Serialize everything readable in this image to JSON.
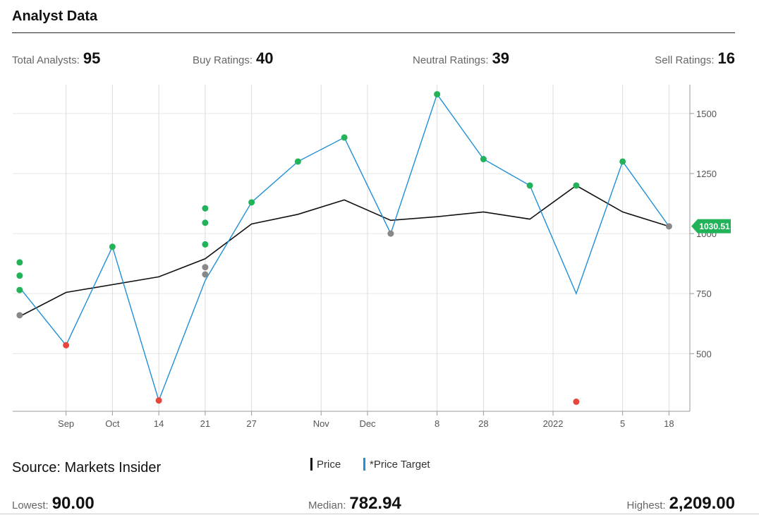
{
  "header": {
    "title": "Analyst Data"
  },
  "stats": {
    "total": {
      "label": "Total Analysts:",
      "value": "95"
    },
    "buy": {
      "label": "Buy Ratings:",
      "value": "40"
    },
    "neutral": {
      "label": "Neutral Ratings:",
      "value": "39"
    },
    "sell": {
      "label": "Sell Ratings:",
      "value": "16"
    }
  },
  "source": "Source: Markets Insider",
  "legend": {
    "price": {
      "label": "Price",
      "color": "#111111"
    },
    "target": {
      "label": "*Price Target",
      "color": "#1f8fd6"
    }
  },
  "bottom_stats": {
    "lowest": {
      "label": "Lowest:",
      "value": "90.00"
    },
    "median": {
      "label": "Median:",
      "value": "782.94"
    },
    "highest": {
      "label": "Highest:",
      "value": "2,209.00"
    }
  },
  "colors": {
    "buy": "#22b25a",
    "neutral": "#888888",
    "sell": "#e8453c",
    "grid": "#e6e6e6",
    "axis": "#999999"
  },
  "chart_data": {
    "type": "line",
    "x_ticks": [
      "Sep",
      "Oct",
      "14",
      "21",
      "27",
      "Nov",
      "Dec",
      "8",
      "28",
      "2022",
      "5",
      "18"
    ],
    "x_tick_pos": [
      1,
      2,
      3,
      4,
      5,
      6.5,
      7.5,
      9,
      10,
      11.5,
      13,
      14
    ],
    "y_ticks": [
      "500",
      "750",
      "1000",
      "1250",
      "1500"
    ],
    "ylim": [
      260,
      1620
    ],
    "xlim": [
      -0.15,
      14.45
    ],
    "current_price_label": "1030.51",
    "current_price": 1030.51,
    "series": [
      {
        "name": "Price",
        "x": [
          0,
          1,
          3,
          4,
          5,
          6,
          7,
          8,
          9,
          10,
          11,
          12,
          13,
          14
        ],
        "values": [
          655,
          755,
          820,
          895,
          1040,
          1080,
          1140,
          1055,
          1070,
          1090,
          1060,
          1200,
          1090,
          1030
        ]
      },
      {
        "name": "*Price Target",
        "x": [
          0,
          1,
          2,
          3,
          4,
          5,
          6,
          7,
          8,
          9,
          10,
          11,
          12,
          13,
          14
        ],
        "values": [
          775,
          535,
          945,
          305,
          805,
          1130,
          1300,
          1400,
          1000,
          1580,
          1310,
          1200,
          750,
          1300,
          1030
        ]
      }
    ],
    "ratings": [
      {
        "x": 0,
        "y": 880,
        "r": "buy"
      },
      {
        "x": 0,
        "y": 825,
        "r": "buy"
      },
      {
        "x": 0,
        "y": 765,
        "r": "buy"
      },
      {
        "x": 0,
        "y": 660,
        "r": "neutral"
      },
      {
        "x": 1,
        "y": 535,
        "r": "sell"
      },
      {
        "x": 2,
        "y": 945,
        "r": "buy"
      },
      {
        "x": 3,
        "y": 305,
        "r": "sell"
      },
      {
        "x": 4,
        "y": 1105,
        "r": "buy"
      },
      {
        "x": 4,
        "y": 1045,
        "r": "buy"
      },
      {
        "x": 4,
        "y": 955,
        "r": "buy"
      },
      {
        "x": 4,
        "y": 860,
        "r": "neutral"
      },
      {
        "x": 4,
        "y": 830,
        "r": "neutral"
      },
      {
        "x": 5,
        "y": 1130,
        "r": "buy"
      },
      {
        "x": 6,
        "y": 1300,
        "r": "buy"
      },
      {
        "x": 7,
        "y": 1400,
        "r": "buy"
      },
      {
        "x": 8,
        "y": 1000,
        "r": "neutral"
      },
      {
        "x": 9,
        "y": 1580,
        "r": "buy"
      },
      {
        "x": 10,
        "y": 1310,
        "r": "buy"
      },
      {
        "x": 11,
        "y": 1200,
        "r": "buy"
      },
      {
        "x": 12,
        "y": 1200,
        "r": "buy"
      },
      {
        "x": 12,
        "y": 300,
        "r": "sell"
      },
      {
        "x": 13,
        "y": 1300,
        "r": "buy"
      },
      {
        "x": 14,
        "y": 1030,
        "r": "neutral"
      }
    ]
  }
}
